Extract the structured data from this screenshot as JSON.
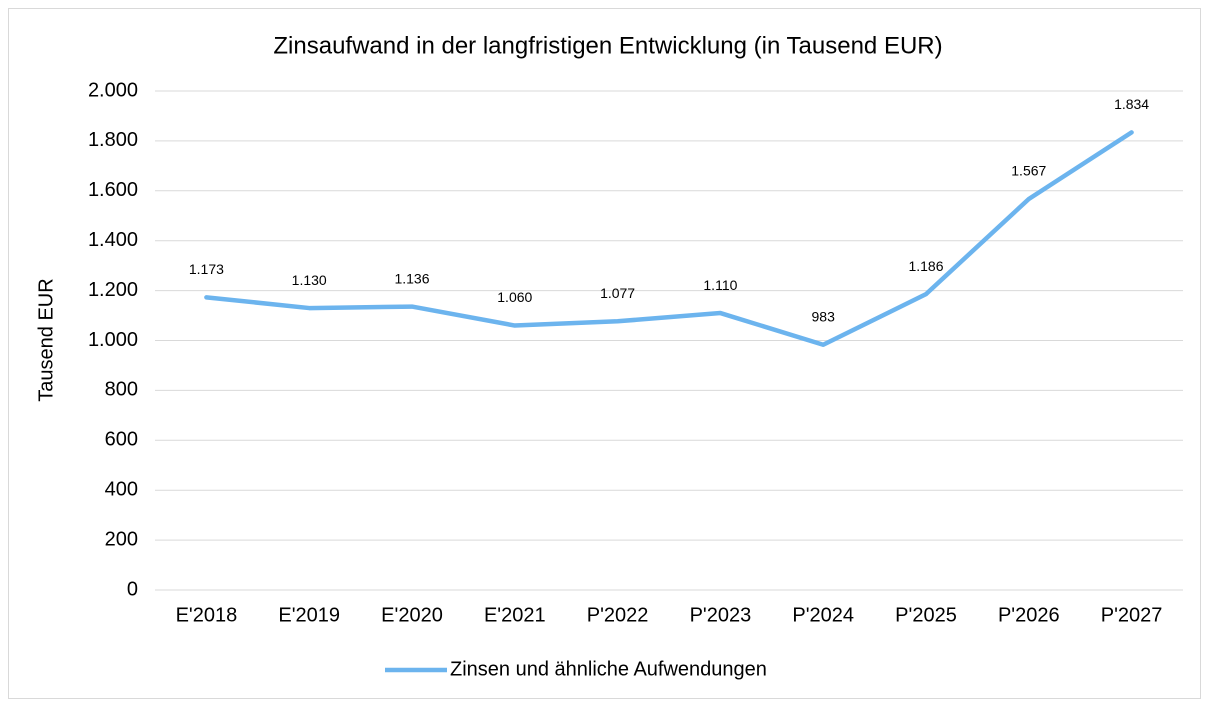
{
  "chart_data": {
    "type": "line",
    "title": "Zinsaufwand in der langfristigen Entwicklung (in Tausend EUR)",
    "y_label": "Tausend EUR",
    "categories": [
      "E'2018",
      "E'2019",
      "E'2020",
      "E'2021",
      "P'2022",
      "P'2023",
      "P'2024",
      "P'2025",
      "P'2026",
      "P'2027"
    ],
    "series": [
      {
        "name": "Zinsen und ähnliche Aufwendungen",
        "color": "#6cb4ee",
        "values": [
          1173,
          1130,
          1136,
          1060,
          1077,
          1110,
          983,
          1186,
          1567,
          1834
        ],
        "value_labels": [
          "1.173",
          "1.130",
          "1.136",
          "1.060",
          "1.077",
          "1.110",
          "983",
          "1.186",
          "1.567",
          "1.834"
        ]
      }
    ],
    "ylim": [
      0,
      2000
    ],
    "yticks": [
      0,
      200,
      400,
      600,
      800,
      {
        "value": 1000,
        "label": "1.000"
      },
      {
        "value": 1200,
        "label": "1.200"
      },
      {
        "value": 1400,
        "label": "1.400"
      },
      {
        "value": 1600,
        "label": "1.600"
      },
      {
        "value": 1800,
        "label": "1.800"
      },
      {
        "value": 2000,
        "label": "2.000"
      }
    ],
    "grid": true,
    "legend": "bottom"
  }
}
